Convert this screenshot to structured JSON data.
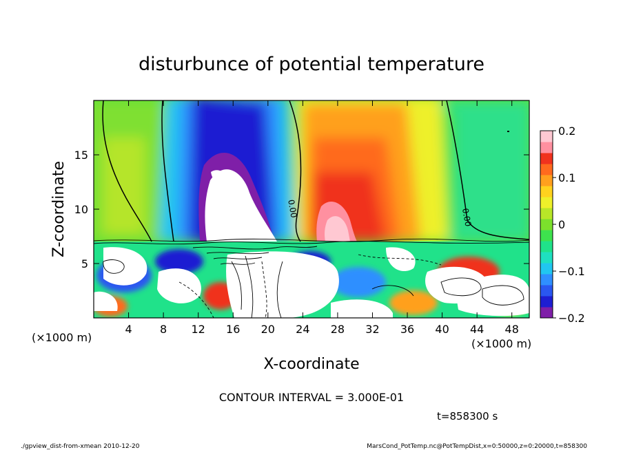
{
  "chart_data": {
    "type": "heatmap",
    "title": "disturbunce of potential temperature",
    "xlabel": "X-coordinate",
    "ylabel": "Z-coordinate",
    "x_unit_left": "(×1000 m)",
    "x_unit_right": "(×1000 m)",
    "xlim": [
      0,
      50
    ],
    "ylim": [
      0,
      20
    ],
    "x_ticks": [
      4,
      8,
      12,
      16,
      20,
      24,
      28,
      32,
      36,
      40,
      44,
      48
    ],
    "y_ticks": [
      5,
      10,
      15
    ],
    "colorbar": {
      "range": [
        -0.2,
        0.2
      ],
      "ticks": [
        0.2,
        0.1,
        0,
        -0.1,
        -0.2
      ],
      "tick_labels": [
        "0.2",
        "0.1",
        "0",
        "−0.1",
        "−0.2"
      ],
      "colors": [
        "#7f1fa8",
        "#1e1ed2",
        "#2a57f0",
        "#2f8fff",
        "#21c6f0",
        "#1fe0c0",
        "#20e28a",
        "#3ee24e",
        "#7ce02c",
        "#b8e628",
        "#eef02a",
        "#ffd21e",
        "#ffa01e",
        "#ff6a1e",
        "#f0321e",
        "#ff90a0",
        "#ffc8d2"
      ]
    },
    "contour_labels": [
      {
        "text": "0.00",
        "x": 22.5,
        "y": 10
      },
      {
        "text": "0.00",
        "x": 42.5,
        "y": 9.2
      }
    ],
    "features": {
      "inversion_height": 7.3,
      "cold_anomaly_center_x": 15.5,
      "warm_anomaly_center_x": 28.5
    },
    "contour_interval": "CONTOUR INTERVAL = 3.000E-01",
    "time_label": "t=858300 s"
  },
  "footer": {
    "script": "./gpview_dist-from-xmean  2010-12-20",
    "source": "MarsCond_PotTemp.nc@PotTempDist,x=0:50000,z=0:20000,t=858300"
  }
}
